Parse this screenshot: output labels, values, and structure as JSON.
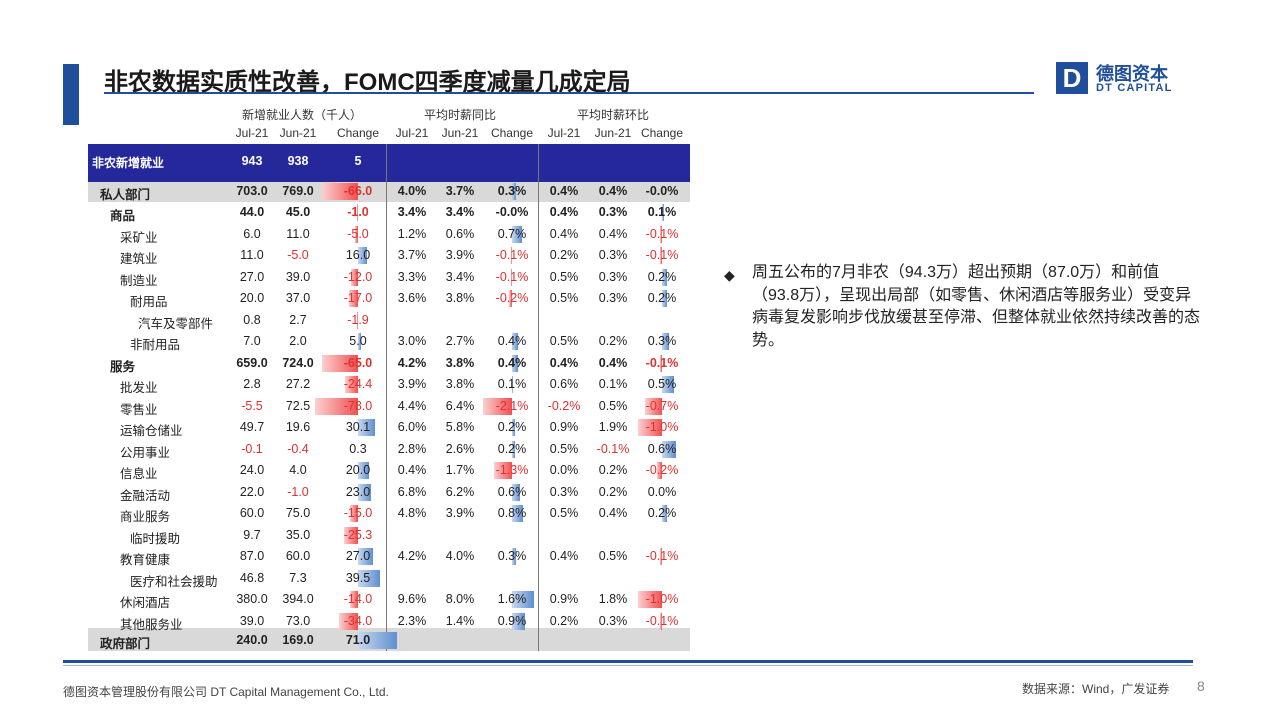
{
  "title": "非农数据实质性改善，FOMC四季度减量几成定局",
  "logo": {
    "mark": "D",
    "cn": "德图资本",
    "en": "DT CAPITAL"
  },
  "table": {
    "group_headers": [
      "新增就业人数（千人）",
      "平均时薪同比",
      "平均时薪环比"
    ],
    "col_headers": [
      "Jul-21",
      "Jun-21",
      "Change",
      "Jul-21",
      "Jun-21",
      "Change",
      "Jul-21",
      "Jun-21",
      "Change"
    ],
    "rows": [
      {
        "label": "非农新增就业",
        "indent": 0,
        "cells": [
          "943",
          "938",
          "5",
          "",
          "",
          "",
          "",
          "",
          ""
        ],
        "style": "band"
      },
      {
        "label": "私人部门",
        "indent": 1,
        "cells": [
          "703.0",
          "769.0",
          "-66.0",
          "4.0%",
          "3.7%",
          "0.3%",
          "0.4%",
          "0.4%",
          "-0.0%"
        ],
        "style": "grey"
      },
      {
        "label": "商品",
        "indent": 2,
        "cells": [
          "44.0",
          "45.0",
          "-1.0",
          "3.4%",
          "3.4%",
          "-0.0%",
          "0.4%",
          "0.3%",
          "0.1%"
        ],
        "style": "bold"
      },
      {
        "label": "采矿业",
        "indent": 3,
        "cells": [
          "6.0",
          "11.0",
          "-5.0",
          "1.2%",
          "0.6%",
          "0.7%",
          "0.4%",
          "0.4%",
          "-0.1%"
        ]
      },
      {
        "label": "建筑业",
        "indent": 3,
        "cells": [
          "11.0",
          "-5.0",
          "16.0",
          "3.7%",
          "3.9%",
          "-0.1%",
          "0.2%",
          "0.3%",
          "-0.1%"
        ]
      },
      {
        "label": "制造业",
        "indent": 3,
        "cells": [
          "27.0",
          "39.0",
          "-12.0",
          "3.3%",
          "3.4%",
          "-0.1%",
          "0.5%",
          "0.3%",
          "0.2%"
        ]
      },
      {
        "label": "耐用品",
        "indent": 4,
        "cells": [
          "20.0",
          "37.0",
          "-17.0",
          "3.6%",
          "3.8%",
          "-0.2%",
          "0.5%",
          "0.3%",
          "0.2%"
        ]
      },
      {
        "label": "汽车及零部件",
        "indent": 5,
        "cells": [
          "0.8",
          "2.7",
          "-1.9",
          "",
          "",
          "",
          "",
          "",
          ""
        ]
      },
      {
        "label": "非耐用品",
        "indent": 4,
        "cells": [
          "7.0",
          "2.0",
          "5.0",
          "3.0%",
          "2.7%",
          "0.4%",
          "0.5%",
          "0.2%",
          "0.3%"
        ]
      },
      {
        "label": "服务",
        "indent": 2,
        "cells": [
          "659.0",
          "724.0",
          "-65.0",
          "4.2%",
          "3.8%",
          "0.4%",
          "0.4%",
          "0.4%",
          "-0.1%"
        ],
        "style": "bold"
      },
      {
        "label": "批发业",
        "indent": 3,
        "cells": [
          "2.8",
          "27.2",
          "-24.4",
          "3.9%",
          "3.8%",
          "0.1%",
          "0.6%",
          "0.1%",
          "0.5%"
        ]
      },
      {
        "label": "零售业",
        "indent": 3,
        "cells": [
          "-5.5",
          "72.5",
          "-78.0",
          "4.4%",
          "6.4%",
          "-2.1%",
          "-0.2%",
          "0.5%",
          "-0.7%"
        ]
      },
      {
        "label": "运输仓储业",
        "indent": 3,
        "cells": [
          "49.7",
          "19.6",
          "30.1",
          "6.0%",
          "5.8%",
          "0.2%",
          "0.9%",
          "1.9%",
          "-1.0%"
        ]
      },
      {
        "label": "公用事业",
        "indent": 3,
        "cells": [
          "-0.1",
          "-0.4",
          "0.3",
          "2.8%",
          "2.6%",
          "0.2%",
          "0.5%",
          "-0.1%",
          "0.6%"
        ]
      },
      {
        "label": "信息业",
        "indent": 3,
        "cells": [
          "24.0",
          "4.0",
          "20.0",
          "0.4%",
          "1.7%",
          "-1.3%",
          "0.0%",
          "0.2%",
          "-0.2%"
        ]
      },
      {
        "label": "金融活动",
        "indent": 3,
        "cells": [
          "22.0",
          "-1.0",
          "23.0",
          "6.8%",
          "6.2%",
          "0.6%",
          "0.3%",
          "0.2%",
          "0.0%"
        ]
      },
      {
        "label": "商业服务",
        "indent": 3,
        "cells": [
          "60.0",
          "75.0",
          "-15.0",
          "4.8%",
          "3.9%",
          "0.8%",
          "0.5%",
          "0.4%",
          "0.2%"
        ]
      },
      {
        "label": "临时援助",
        "indent": 4,
        "cells": [
          "9.7",
          "35.0",
          "-25.3",
          "",
          "",
          "",
          "",
          "",
          ""
        ]
      },
      {
        "label": "教育健康",
        "indent": 3,
        "cells": [
          "87.0",
          "60.0",
          "27.0",
          "4.2%",
          "4.0%",
          "0.3%",
          "0.4%",
          "0.5%",
          "-0.1%"
        ]
      },
      {
        "label": "医疗和社会援助",
        "indent": 4,
        "cells": [
          "46.8",
          "7.3",
          "39.5",
          "",
          "",
          "",
          "",
          "",
          ""
        ]
      },
      {
        "label": "休闲酒店",
        "indent": 3,
        "cells": [
          "380.0",
          "394.0",
          "-14.0",
          "9.6%",
          "8.0%",
          "1.6%",
          "0.9%",
          "1.8%",
          "-1.0%"
        ]
      },
      {
        "label": "其他服务业",
        "indent": 3,
        "cells": [
          "39.0",
          "73.0",
          "-34.0",
          "2.3%",
          "1.4%",
          "0.9%",
          "0.2%",
          "0.3%",
          "-0.1%"
        ]
      },
      {
        "label": "政府部门",
        "indent": 1,
        "cells": [
          "240.0",
          "169.0",
          "71.0",
          "",
          "",
          "",
          "",
          "",
          ""
        ],
        "style": "grey2"
      }
    ]
  },
  "bullet": "周五公布的7月非农（94.3万）超出预期（87.0万）和前值（93.8万），呈现出局部（如零售、休闲酒店等服务业）受变异病毒复发影响步伐放缓甚至停滞、但整体就业依然持续改善的态势。",
  "footer": {
    "company": "德图资本管理股份有限公司  DT Capital Management  Co., Ltd.",
    "source": "数据来源：Wind，广发证券",
    "page": "8"
  },
  "colors": {
    "brand": "#1f4e9a",
    "band": "#24289a",
    "negative": "#e03030",
    "positive_bar": "#5f8fd0"
  }
}
